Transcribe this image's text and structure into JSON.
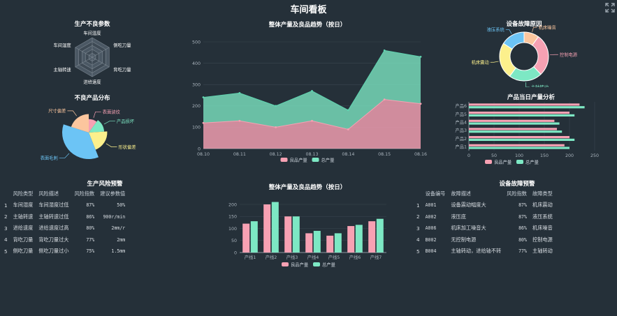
{
  "page": {
    "title": "车间看板"
  },
  "panels": {
    "radar_title": "生产不良参数",
    "defect_dist_title": "不良产品分布",
    "trend_title": "整体产量及良品趋势（按日）",
    "fault_cause_title": "设备故障原因",
    "daily_output_title": "产品当日产量分析",
    "risk_title": "生产风险预警",
    "line_trend_title": "整体产量及良品趋势（按日）",
    "equip_title": "设备故障预警"
  },
  "colors": {
    "good": "#f7a1b3",
    "total": "#7de8c4",
    "pink": "#f18ba1",
    "teal": "#5fd4b0"
  },
  "radar": {
    "indicators": [
      "车间温度",
      "侧吃刀量",
      "背吃刀量",
      "进给速度",
      "主轴转速",
      "车间湿度"
    ]
  },
  "defect_pie": {
    "labels": [
      "表面波纹",
      "产品损坏",
      "形状偏差",
      "表面毛刺",
      "尺寸偏差"
    ],
    "values": [
      10,
      14,
      20,
      36,
      20
    ],
    "colors": [
      "#f7a1b3",
      "#7de8c4",
      "#fcf08c",
      "#6cc4f5",
      "#fcc69e"
    ]
  },
  "chart_data": [
    {
      "type": "area",
      "title": "整体产量及良品趋势（按日）",
      "categories": [
        "08.10",
        "08.11",
        "08.12",
        "08.13",
        "08.14",
        "08.15",
        "08.16"
      ],
      "series": [
        {
          "name": "良品产量",
          "values": [
            120,
            130,
            100,
            130,
            90,
            230,
            210
          ]
        },
        {
          "name": "总产量",
          "values": [
            240,
            260,
            200,
            270,
            180,
            460,
            430
          ]
        }
      ],
      "ylim": [
        0,
        500
      ],
      "yticks": [
        0,
        100,
        200,
        300,
        400,
        500
      ],
      "legend": "bottom"
    },
    {
      "type": "pie",
      "title": "设备故障原因",
      "labels": [
        "机床噪音",
        "控制电源",
        "主轴转动",
        "机床震动",
        "液压系统"
      ],
      "values": [
        10,
        28,
        22,
        24,
        16
      ],
      "colors": [
        "#fcc69e",
        "#f7a1b3",
        "#7de8c4",
        "#fcf08c",
        "#6cc4f5"
      ]
    },
    {
      "type": "bar",
      "title": "产品当日产量分析",
      "orientation": "horizontal",
      "categories": [
        "产品1",
        "产品2",
        "产品3",
        "产品4",
        "产品5",
        "产品6"
      ],
      "series": [
        {
          "name": "良品产量",
          "values": [
            190,
            200,
            175,
            170,
            200,
            220
          ]
        },
        {
          "name": "总产量",
          "values": [
            200,
            210,
            185,
            180,
            210,
            230
          ]
        }
      ],
      "xlim": [
        0,
        250
      ],
      "xticks": [
        0,
        50,
        100,
        150,
        200,
        250
      ],
      "legend": "bottom"
    },
    {
      "type": "bar",
      "title": "整体产量及良品趋势（按日）",
      "categories": [
        "产线1",
        "产线2",
        "产线3",
        "产线4",
        "产线5",
        "产线6",
        "产线7"
      ],
      "series": [
        {
          "name": "良品产量",
          "values": [
            120,
            200,
            150,
            80,
            70,
            110,
            130
          ]
        },
        {
          "name": "总产量",
          "values": [
            130,
            210,
            150,
            90,
            80,
            115,
            140
          ]
        }
      ],
      "ylim": [
        0,
        200
      ],
      "yticks": [
        0,
        50,
        100,
        150,
        200
      ],
      "legend": "bottom"
    }
  ],
  "risk_table": {
    "headers": [
      "风险类型",
      "风险描述",
      "风险指数",
      "建议参数值"
    ],
    "rows": [
      [
        "1",
        "车间湿度",
        "车间湿度过低",
        "87%",
        "50%"
      ],
      [
        "2",
        "主轴转速",
        "主轴转速过低",
        "86%",
        "900r/min"
      ],
      [
        "3",
        "进给速度",
        "进给速度过高",
        "80%",
        "2mm/r"
      ],
      [
        "4",
        "背吃刀量",
        "背吃刀量过大",
        "77%",
        "2mm"
      ],
      [
        "5",
        "侧吃刀量",
        "侧吃刀量过小",
        "75%",
        "1.5mm"
      ]
    ]
  },
  "equip_table": {
    "headers": [
      "设备编号",
      "故障描述",
      "风险指数",
      "故障类型"
    ],
    "rows": [
      [
        "1",
        "A001",
        "设备震动幅度大",
        "87%",
        "机床震动"
      ],
      [
        "2",
        "A002",
        "液压底",
        "87%",
        "液压系统"
      ],
      [
        "3",
        "A006",
        "机床加工噪音大",
        "86%",
        "机床噪音"
      ],
      [
        "4",
        "B002",
        "无控制电源",
        "80%",
        "控制电源"
      ],
      [
        "5",
        "B004",
        "主轴转动，进给轴不转",
        "77%",
        "主轴转动"
      ]
    ]
  }
}
